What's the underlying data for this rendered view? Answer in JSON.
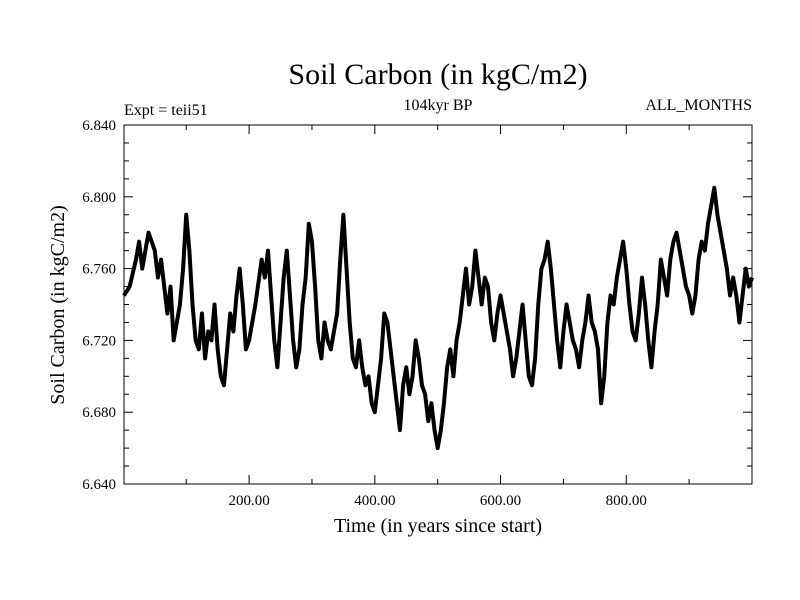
{
  "chart_data": {
    "type": "line",
    "title": "Soil Carbon (in kgC/m2)",
    "subtitle": "104kyr BP",
    "left_label": "Expt = teii51",
    "right_label": "ALL_MONTHS",
    "xlabel": "Time (in years since start)",
    "ylabel": "Soil Carbon (in kgC/m2)",
    "xlim": [
      1,
      1000
    ],
    "ylim": [
      6.64,
      6.84
    ],
    "xticks": [
      200,
      400,
      600,
      800
    ],
    "xtick_labels": [
      "200.00",
      "400.00",
      "600.00",
      "800.00"
    ],
    "yticks": [
      6.64,
      6.68,
      6.72,
      6.76,
      6.8,
      6.84
    ],
    "ytick_labels": [
      "6.640",
      "6.680",
      "6.720",
      "6.760",
      "6.800",
      "6.840"
    ],
    "grid": false,
    "line_color": "#000000",
    "series": [
      {
        "x": [
          1,
          10,
          20,
          25,
          30,
          40,
          50,
          55,
          60,
          70,
          75,
          80,
          90,
          95,
          100,
          105,
          110,
          115,
          120,
          125,
          130,
          135,
          140,
          145,
          150,
          155,
          160,
          165,
          170,
          175,
          180,
          185,
          190,
          195,
          200,
          210,
          220,
          225,
          230,
          235,
          240,
          245,
          250,
          255,
          260,
          265,
          270,
          275,
          280,
          285,
          290,
          295,
          300,
          305,
          310,
          315,
          320,
          325,
          330,
          340,
          345,
          350,
          355,
          360,
          365,
          370,
          375,
          380,
          385,
          390,
          395,
          400,
          405,
          410,
          415,
          420,
          425,
          430,
          435,
          440,
          445,
          450,
          455,
          460,
          465,
          470,
          475,
          480,
          485,
          490,
          495,
          500,
          505,
          510,
          515,
          520,
          525,
          530,
          535,
          540,
          545,
          550,
          555,
          560,
          565,
          570,
          575,
          580,
          585,
          590,
          595,
          600,
          605,
          610,
          615,
          620,
          625,
          630,
          635,
          640,
          645,
          650,
          655,
          660,
          665,
          670,
          675,
          680,
          685,
          690,
          695,
          700,
          705,
          710,
          715,
          720,
          725,
          730,
          735,
          740,
          745,
          750,
          755,
          760,
          765,
          770,
          775,
          780,
          785,
          790,
          795,
          800,
          805,
          810,
          815,
          820,
          825,
          830,
          835,
          840,
          845,
          850,
          855,
          860,
          865,
          870,
          875,
          880,
          885,
          890,
          895,
          900,
          905,
          910,
          915,
          920,
          925,
          930,
          935,
          940,
          945,
          950,
          955,
          960,
          965,
          970,
          975,
          980,
          985,
          990,
          995,
          1000
        ],
        "y": [
          6.745,
          6.75,
          6.765,
          6.775,
          6.76,
          6.78,
          6.77,
          6.755,
          6.765,
          6.735,
          6.75,
          6.72,
          6.74,
          6.76,
          6.79,
          6.77,
          6.74,
          6.72,
          6.715,
          6.735,
          6.71,
          6.725,
          6.72,
          6.74,
          6.715,
          6.7,
          6.695,
          6.715,
          6.735,
          6.725,
          6.745,
          6.76,
          6.74,
          6.715,
          6.72,
          6.74,
          6.765,
          6.755,
          6.77,
          6.745,
          6.72,
          6.705,
          6.73,
          6.755,
          6.77,
          6.745,
          6.72,
          6.705,
          6.715,
          6.74,
          6.755,
          6.785,
          6.775,
          6.75,
          6.72,
          6.71,
          6.73,
          6.72,
          6.715,
          6.735,
          6.765,
          6.79,
          6.76,
          6.73,
          6.71,
          6.705,
          6.72,
          6.705,
          6.695,
          6.7,
          6.685,
          6.68,
          6.695,
          6.71,
          6.735,
          6.73,
          6.715,
          6.7,
          6.685,
          6.67,
          6.695,
          6.705,
          6.69,
          6.7,
          6.72,
          6.71,
          6.695,
          6.69,
          6.675,
          6.685,
          6.67,
          6.66,
          6.67,
          6.685,
          6.705,
          6.715,
          6.7,
          6.72,
          6.73,
          6.745,
          6.76,
          6.74,
          6.75,
          6.77,
          6.755,
          6.74,
          6.755,
          6.75,
          6.73,
          6.72,
          6.735,
          6.745,
          6.735,
          6.725,
          6.715,
          6.7,
          6.71,
          6.725,
          6.74,
          6.72,
          6.7,
          6.695,
          6.71,
          6.74,
          6.76,
          6.765,
          6.775,
          6.76,
          6.74,
          6.72,
          6.705,
          6.725,
          6.74,
          6.73,
          6.72,
          6.715,
          6.705,
          6.72,
          6.73,
          6.745,
          6.73,
          6.725,
          6.715,
          6.685,
          6.7,
          6.73,
          6.745,
          6.74,
          6.755,
          6.765,
          6.775,
          6.76,
          6.74,
          6.725,
          6.72,
          6.735,
          6.755,
          6.74,
          6.72,
          6.705,
          6.725,
          6.74,
          6.765,
          6.755,
          6.745,
          6.765,
          6.775,
          6.78,
          6.77,
          6.76,
          6.75,
          6.745,
          6.735,
          6.745,
          6.765,
          6.775,
          6.77,
          6.785,
          6.795,
          6.805,
          6.79,
          6.78,
          6.77,
          6.76,
          6.745,
          6.755,
          6.745,
          6.73,
          6.745,
          6.76,
          6.75,
          6.755
        ]
      }
    ]
  }
}
